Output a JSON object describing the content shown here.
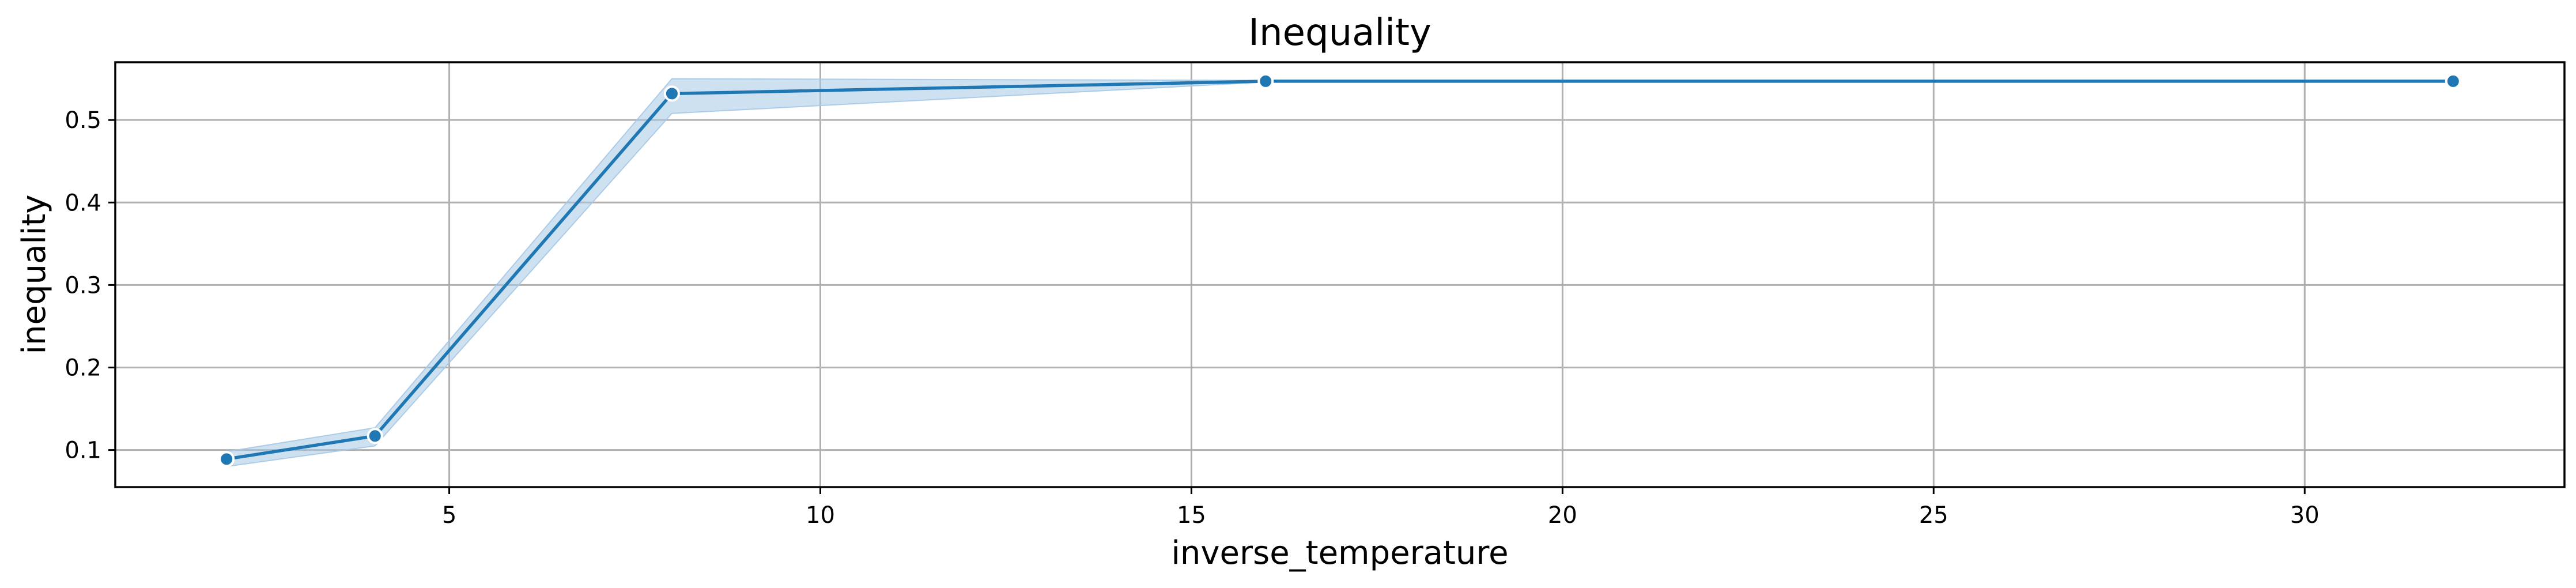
{
  "chart_data": {
    "type": "line",
    "title": "Inequality",
    "xlabel": "inverse_temperature",
    "ylabel": "inequality",
    "xlim": [
      0.5,
      33.5
    ],
    "ylim": [
      0.055,
      0.57
    ],
    "xticks": [
      5,
      10,
      15,
      20,
      25,
      30
    ],
    "yticks": [
      0.1,
      0.2,
      0.3,
      0.4,
      0.5
    ],
    "grid": true,
    "series": [
      {
        "x": [
          2,
          4,
          8,
          16,
          32
        ],
        "y": [
          0.089,
          0.117,
          0.532,
          0.547,
          0.547
        ],
        "ci_lower": [
          0.08,
          0.105,
          0.508,
          0.546,
          0.546
        ],
        "ci_upper": [
          0.098,
          0.127,
          0.55,
          0.548,
          0.548
        ],
        "color": "#1f77b4",
        "band_color": "#a6c8e6"
      }
    ]
  }
}
